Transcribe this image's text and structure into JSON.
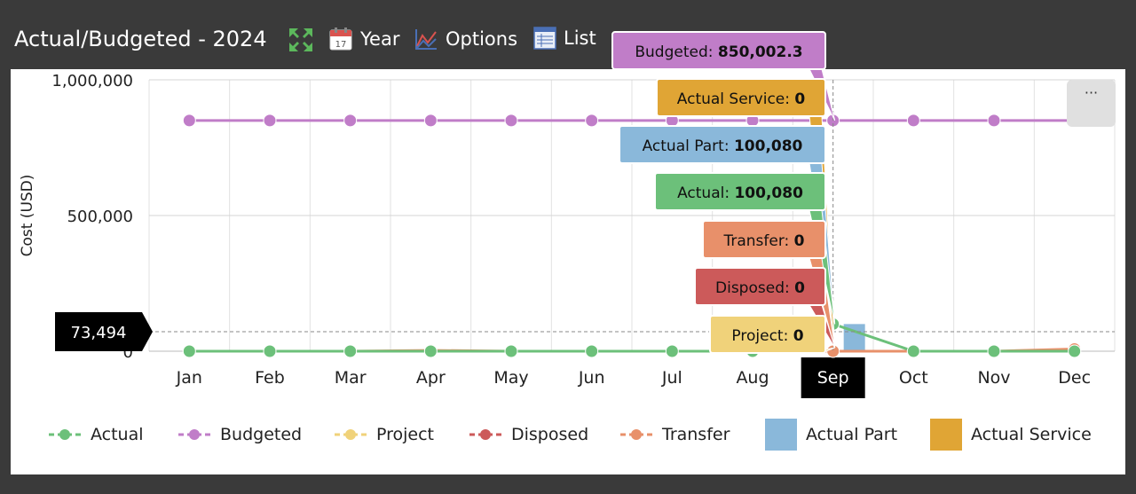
{
  "header": {
    "title": "Actual/Budgeted - 2024",
    "tools": [
      {
        "label": "",
        "icon": "fullscreen-icon"
      },
      {
        "label": "Year",
        "icon": "calendar-icon"
      },
      {
        "label": "Options",
        "icon": "chart-options-icon"
      },
      {
        "label": "List",
        "icon": "list-icon"
      }
    ]
  },
  "menu_button_label": "···",
  "colors": {
    "actual": "#6cc07a",
    "budgeted": "#c07dc8",
    "project": "#f0d27a",
    "disposed": "#cc5a5a",
    "transfer": "#e8906a",
    "actual_part": "#8ab8da",
    "actual_service": "#e0a535"
  },
  "chart_data": {
    "type": "line",
    "categories": [
      "Jan",
      "Feb",
      "Mar",
      "Apr",
      "May",
      "Jun",
      "Jul",
      "Aug",
      "Sep",
      "Oct",
      "Nov",
      "Dec"
    ],
    "ylabel": "Cost (USD)",
    "ylim": [
      0,
      1000000
    ],
    "y_ticks": [
      "0",
      "500,000",
      "1,000,000"
    ],
    "series": [
      {
        "name": "Actual",
        "kind": "line",
        "values": [
          0,
          0,
          0,
          0,
          0,
          0,
          0,
          0,
          100080,
          0,
          0,
          0
        ]
      },
      {
        "name": "Budgeted",
        "kind": "line",
        "values": [
          850002.3,
          850002.3,
          850002.3,
          850002.3,
          850002.3,
          850002.3,
          850002.3,
          850002.3,
          850002.3,
          850002.3,
          850002.3,
          850002.3
        ]
      },
      {
        "name": "Project",
        "kind": "line",
        "values": [
          0,
          0,
          0,
          0,
          0,
          0,
          0,
          0,
          0,
          0,
          0,
          0
        ]
      },
      {
        "name": "Disposed",
        "kind": "line",
        "values": [
          0,
          0,
          0,
          0,
          0,
          0,
          0,
          0,
          0,
          0,
          0,
          0
        ]
      },
      {
        "name": "Transfer",
        "kind": "line",
        "values": [
          0,
          0,
          0,
          3000,
          0,
          0,
          0,
          0,
          0,
          0,
          0,
          8000
        ]
      },
      {
        "name": "Actual Part",
        "kind": "bar",
        "values": [
          0,
          0,
          0,
          0,
          0,
          0,
          0,
          0,
          100080,
          0,
          0,
          0
        ]
      },
      {
        "name": "Actual Service",
        "kind": "bar",
        "values": [
          0,
          0,
          0,
          0,
          0,
          0,
          0,
          0,
          0,
          0,
          0,
          0
        ]
      }
    ],
    "crosshair": {
      "category": "Sep",
      "y_value_label": "73,494"
    },
    "tooltip": [
      {
        "series": "Budgeted",
        "label": "Budgeted:",
        "value": "850,002.3"
      },
      {
        "series": "Actual Service",
        "label": "Actual Service:",
        "value": "0"
      },
      {
        "series": "Actual Part",
        "label": "Actual Part:",
        "value": "100,080"
      },
      {
        "series": "Actual",
        "label": "Actual:",
        "value": "100,080"
      },
      {
        "series": "Transfer",
        "label": "Transfer:",
        "value": "0"
      },
      {
        "series": "Disposed",
        "label": "Disposed:",
        "value": "0"
      },
      {
        "series": "Project",
        "label": "Project:",
        "value": "0"
      }
    ],
    "legend": [
      "Actual",
      "Budgeted",
      "Project",
      "Disposed",
      "Transfer",
      "Actual Part",
      "Actual Service"
    ],
    "grid": true
  }
}
